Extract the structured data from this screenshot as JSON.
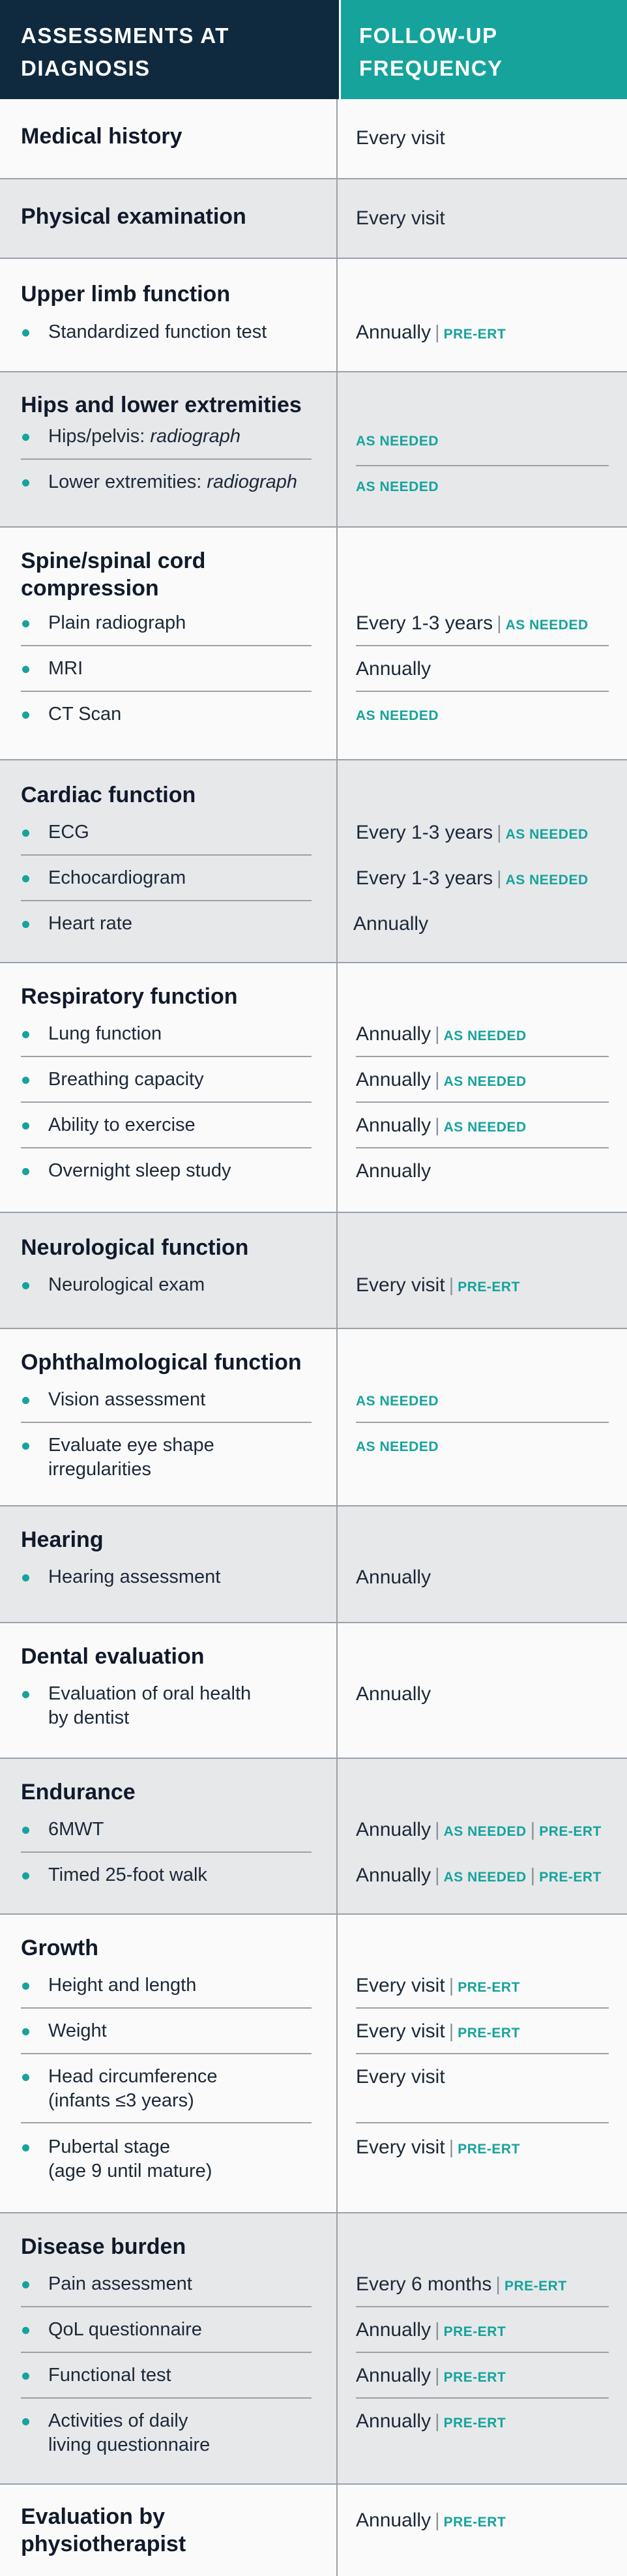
{
  "header": {
    "left_line1": "ASSESSMENTS AT",
    "left_line2": "DIAGNOSIS",
    "right_line1": "FOLLOW-UP",
    "right_line2": "FREQUENCY"
  },
  "colors": {
    "navy": "#0f2a3f",
    "teal": "#16a39b",
    "gray_row": "#e6e8ea"
  },
  "tags": {
    "pre_ert": "PRE-ERT",
    "as_needed": "AS NEEDED"
  },
  "sections": [
    {
      "title": "Medical history",
      "freq": "Every visit"
    },
    {
      "title": "Physical examination",
      "freq": "Every visit"
    },
    {
      "title": "Upper limb function",
      "items": [
        {
          "label": "Standardized function test",
          "freq": "Annually"
        }
      ]
    },
    {
      "title": "Hips and lower extremities",
      "items": [
        {
          "label_plain": "Hips/pelvis:",
          "label_italic": "radiograph"
        },
        {
          "label_plain": "Lower extremities:",
          "label_italic": "radiograph"
        }
      ]
    },
    {
      "title_line1": "Spine/spinal cord",
      "title_line2": "compression",
      "items": [
        {
          "label": "Plain radiograph",
          "freq": "Every 1-3 years"
        },
        {
          "label": "MRI",
          "freq": "Annually"
        },
        {
          "label": "CT Scan"
        }
      ]
    },
    {
      "title": "Cardiac function",
      "items": [
        {
          "label": "ECG",
          "freq": "Every 1-3 years"
        },
        {
          "label": "Echocardiogram",
          "freq": "Every 1-3 years"
        },
        {
          "label": "Heart rate",
          "freq": "Annually"
        }
      ]
    },
    {
      "title": "Respiratory function",
      "items": [
        {
          "label": "Lung function",
          "freq": "Annually"
        },
        {
          "label": "Breathing capacity",
          "freq": "Annually"
        },
        {
          "label": "Ability to exercise",
          "freq": "Annually"
        },
        {
          "label": "Overnight sleep study",
          "freq": "Annually"
        }
      ]
    },
    {
      "title": "Neurological function",
      "items": [
        {
          "label": "Neurological exam",
          "freq": "Every visit"
        }
      ]
    },
    {
      "title": "Ophthalmological function",
      "items": [
        {
          "label": "Vision assessment"
        },
        {
          "label_line1": "Evaluate eye shape",
          "label_line2": "irregularities"
        }
      ]
    },
    {
      "title": "Hearing",
      "items": [
        {
          "label": "Hearing assessment",
          "freq": "Annually"
        }
      ]
    },
    {
      "title": "Dental evaluation",
      "items": [
        {
          "label_line1": "Evaluation of oral health",
          "label_line2": "by dentist",
          "freq": "Annually"
        }
      ]
    },
    {
      "title": "Endurance",
      "items": [
        {
          "label": "6MWT",
          "freq": "Annually"
        },
        {
          "label": "Timed 25-foot walk",
          "freq": "Annually"
        }
      ]
    },
    {
      "title": "Growth",
      "items": [
        {
          "label": "Height and length",
          "freq": "Every visit"
        },
        {
          "label": "Weight",
          "freq": "Every visit"
        },
        {
          "label_line1": "Head circumference",
          "label_line2": "(infants ≤3 years)",
          "freq": "Every visit"
        },
        {
          "label_line1": "Pubertal stage",
          "label_line2": "(age 9 until mature)",
          "freq": "Every visit"
        }
      ]
    },
    {
      "title": "Disease burden",
      "items": [
        {
          "label": "Pain assessment",
          "freq": "Every 6 months"
        },
        {
          "label": "QoL questionnaire",
          "freq": "Annually"
        },
        {
          "label": "Functional test",
          "freq": "Annually"
        },
        {
          "label_line1": "Activities of daily",
          "label_line2": "living questionnaire",
          "freq": "Annually"
        }
      ]
    },
    {
      "title_line1": "Evaluation by",
      "title_line2": "physiotherapist",
      "freq": "Annually"
    }
  ]
}
